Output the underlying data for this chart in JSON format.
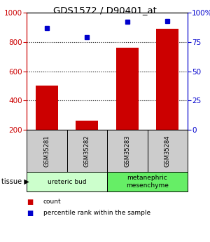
{
  "title": "GDS1572 / D90401_at",
  "samples": [
    "GSM35281",
    "GSM35282",
    "GSM35283",
    "GSM35284"
  ],
  "counts": [
    500,
    260,
    760,
    890
  ],
  "percentiles": [
    87,
    79,
    92,
    93
  ],
  "ylim_left": [
    200,
    1000
  ],
  "ylim_right": [
    0,
    100
  ],
  "yticks_left": [
    200,
    400,
    600,
    800,
    1000
  ],
  "yticks_right": [
    0,
    25,
    50,
    75,
    100
  ],
  "bar_color": "#cc0000",
  "dot_color": "#0000cc",
  "tissue_groups": [
    {
      "label": "ureteric bud",
      "samples": [
        0,
        1
      ],
      "color": "#ccffcc"
    },
    {
      "label": "metanephric\nmesenchyme",
      "samples": [
        2,
        3
      ],
      "color": "#66ee66"
    }
  ],
  "tissue_label": "tissue",
  "legend_items": [
    {
      "label": "count",
      "color": "#cc0000"
    },
    {
      "label": "percentile rank within the sample",
      "color": "#0000cc"
    }
  ],
  "sample_box_color": "#cccccc",
  "left_axis_color": "#cc0000",
  "right_axis_color": "#0000cc",
  "grid_yvals": [
    400,
    600,
    800
  ],
  "bar_width": 0.55
}
